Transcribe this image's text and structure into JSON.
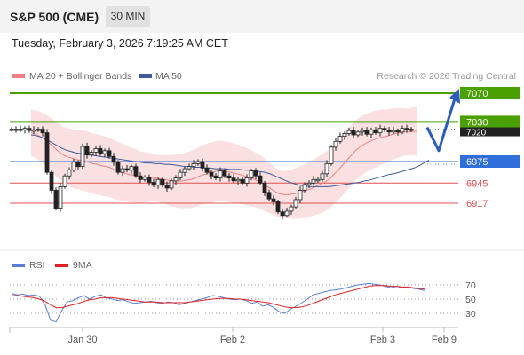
{
  "header": {
    "title": "S&P 500 (CME)",
    "timeframe": "30 MIN"
  },
  "datetime": "Tuesday, February 3, 2026 7:19:25 AM CET",
  "colors": {
    "ma20": "#f08080",
    "ma50": "#3a5a9a",
    "resistance": "#4aa000",
    "support": "#2f6fdc",
    "level_red": "#e05050",
    "arrow": "#2a5bbd",
    "rsi": "#5b7fd8",
    "rsi_ma": "#e02020",
    "band": "#f9dada",
    "candle": "#222222"
  },
  "legend": {
    "ma20": "MA 20 + Bollinger Bands",
    "ma50": "MA 50",
    "credit": "Research © 2026 Trading Central"
  },
  "chart_data": [
    {
      "type": "candlestick",
      "title": "S&P 500 (CME)",
      "ylim": [
        6880,
        7085
      ],
      "x_ticks": [
        "Jan 30",
        "Feb 2",
        "Feb 3",
        "Feb 9"
      ],
      "last_price": 7020,
      "levels": [
        {
          "value": 7070,
          "label": "7070",
          "kind": "resistance"
        },
        {
          "value": 7030,
          "label": "7030",
          "kind": "resistance"
        },
        {
          "value": 6975,
          "label": "6975",
          "kind": "pivot"
        },
        {
          "value": 6945,
          "label": "6945",
          "kind": "support"
        },
        {
          "value": 6917,
          "label": "6917",
          "kind": "support"
        }
      ],
      "close_series": [
        7020,
        7020,
        7019,
        7021,
        7018,
        7019,
        7020,
        7015,
        6960,
        6935,
        6910,
        6940,
        6955,
        6963,
        6974,
        6968,
        6996,
        6984,
        6988,
        6993,
        6986,
        6990,
        6982,
        6974,
        6960,
        6965,
        6963,
        6968,
        6955,
        6950,
        6953,
        6946,
        6942,
        6950,
        6942,
        6938,
        6948,
        6952,
        6960,
        6965,
        6968,
        6972,
        6975,
        6966,
        6960,
        6955,
        6952,
        6962,
        6955,
        6952,
        6948,
        6950,
        6945,
        6952,
        6962,
        6955,
        6945,
        6932,
        6923,
        6919,
        6905,
        6900,
        6906,
        6912,
        6922,
        6935,
        6943,
        6945,
        6950,
        6950,
        6958,
        6972,
        6995,
        7003,
        7010,
        7014,
        7018,
        7012,
        7016,
        7018,
        7013,
        7019,
        7015,
        7021,
        7019,
        7016,
        7018,
        7016,
        7021,
        7020,
        7019
      ],
      "ma20_series": [
        7015,
        7013,
        7010,
        7006,
        7001,
        6996,
        6990,
        6985,
        6982,
        6980,
        6978,
        6977,
        6976,
        6974,
        6972,
        6971,
        6969,
        6968,
        6966,
        6963,
        6961,
        6959,
        6957,
        6956,
        6954,
        6953,
        6953,
        6953,
        6952,
        6951,
        6950,
        6949,
        6948,
        6948,
        6948,
        6949,
        6950,
        6952,
        6955,
        6957,
        6959,
        6960,
        6962,
        6962,
        6961,
        6960,
        6958,
        6957,
        6955,
        6953,
        6951,
        6948,
        6945,
        6941,
        6937,
        6933,
        6930,
        6929,
        6929,
        6930,
        6931,
        6933,
        6935,
        6937,
        6940,
        6943,
        6946,
        6950,
        6956,
        6962,
        6969,
        6976,
        6983,
        6990,
        6995,
        6999,
        7002,
        7005,
        7007,
        7009,
        7010,
        7012,
        7014,
        7015,
        7016,
        7016,
        7017,
        7017
      ],
      "ma50_series": [
        7012,
        7011,
        7009,
        7006,
        7002,
        6998,
        6994,
        6991,
        6989,
        6987,
        6986,
        6985,
        6984,
        6983,
        6982,
        6981,
        6980,
        6979,
        6978,
        6977,
        6976,
        6975,
        6974,
        6973,
        6973,
        6972,
        6972,
        6971,
        6971,
        6970,
        6969,
        6968,
        6968,
        6967,
        6967,
        6966,
        6966,
        6965,
        6965,
        6965,
        6964,
        6964,
        6964,
        6963,
        6963,
        6962,
        6961,
        6960,
        6958,
        6955,
        6952,
        6949,
        6946,
        6944,
        6942,
        6941,
        6940,
        6940,
        6940,
        6940,
        6940,
        6941,
        6942,
        6943,
        6944,
        6945,
        6946,
        6948,
        6949,
        6951,
        6953,
        6955,
        6957,
        6958,
        6960,
        6962,
        6964,
        6966,
        6969,
        6973,
        6977
      ],
      "forecast": [
        7020,
        7000,
        7070
      ]
    },
    {
      "type": "line",
      "title": "RSI",
      "ylim": [
        20,
        80
      ],
      "y_ticks": [
        70,
        50,
        30
      ],
      "series": [
        {
          "name": "RSI",
          "values": [
            58,
            56,
            57,
            55,
            56,
            54,
            42,
            20,
            18,
            34,
            46,
            48,
            52,
            55,
            50,
            54,
            56,
            52,
            50,
            48,
            49,
            46,
            44,
            45,
            46,
            47,
            45,
            44,
            46,
            45,
            42,
            44,
            46,
            48,
            50,
            52,
            55,
            54,
            52,
            50,
            49,
            50,
            48,
            44,
            46,
            40,
            42,
            38,
            32,
            30,
            36,
            40,
            45,
            50,
            56,
            58,
            60,
            62,
            63,
            64,
            66,
            68,
            70,
            71,
            72,
            71,
            70,
            68,
            66,
            68,
            66,
            67,
            65,
            64,
            62
          ]
        },
        {
          "name": "9MA",
          "values": [
            55,
            55,
            54,
            53,
            52,
            50,
            47,
            42,
            38,
            38,
            40,
            42,
            44,
            47,
            49,
            50,
            52,
            52,
            52,
            51,
            50,
            49,
            48,
            47,
            46,
            46,
            46,
            45,
            45,
            45,
            45,
            45,
            46,
            47,
            48,
            49,
            50,
            51,
            51,
            51,
            50,
            50,
            49,
            48,
            47,
            46,
            45,
            43,
            41,
            39,
            38,
            38,
            39,
            41,
            44,
            47,
            50,
            53,
            56,
            58,
            60,
            62,
            64,
            66,
            68,
            69,
            69,
            69,
            68,
            68,
            67,
            67,
            66,
            65,
            64
          ]
        }
      ]
    }
  ]
}
